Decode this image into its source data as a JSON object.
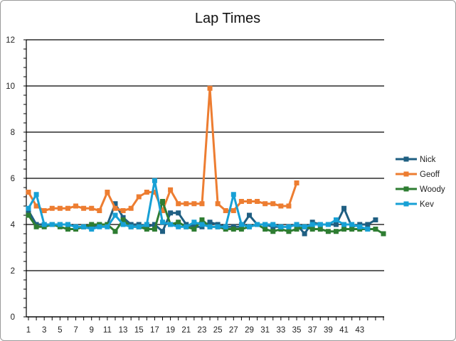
{
  "chart_data": {
    "type": "line",
    "title": "Lap Times",
    "xlabel": "",
    "ylabel": "",
    "ylim": [
      0,
      12
    ],
    "yticks": [
      "0",
      "2",
      "4",
      "6",
      "8",
      "10",
      "12"
    ],
    "xtick_labels": [
      "1",
      "3",
      "5",
      "7",
      "9",
      "11",
      "13",
      "15",
      "17",
      "19",
      "21",
      "23",
      "25",
      "27",
      "29",
      "31",
      "33",
      "35",
      "37",
      "39",
      "41",
      "43"
    ],
    "x_count": 46,
    "grid": "horizontal major lines",
    "legend_position": "right",
    "series": [
      {
        "name": "Nick",
        "color": "#1f5f82",
        "marker": "square",
        "values": [
          4.6,
          4.0,
          4.0,
          4.0,
          4.0,
          4.0,
          3.9,
          3.9,
          3.9,
          4.0,
          4.0,
          4.9,
          4.3,
          4.0,
          4.0,
          3.9,
          4.0,
          3.7,
          4.5,
          4.5,
          4.0,
          3.9,
          3.9,
          4.1,
          4.0,
          3.9,
          3.9,
          3.9,
          4.4,
          4.0,
          4.0,
          3.9,
          3.9,
          3.9,
          4.0,
          3.6,
          4.1,
          4.0,
          4.0,
          4.0,
          4.7,
          3.9,
          4.0,
          4.0,
          4.2,
          null
        ]
      },
      {
        "name": "Geoff",
        "color": "#ed7d31",
        "marker": "square",
        "values": [
          5.4,
          4.8,
          4.6,
          4.7,
          4.7,
          4.7,
          4.8,
          4.7,
          4.7,
          4.6,
          5.4,
          4.7,
          4.6,
          4.7,
          5.2,
          5.4,
          5.4,
          4.6,
          5.5,
          4.9,
          4.9,
          4.9,
          4.9,
          9.9,
          4.9,
          4.6,
          4.6,
          5.0,
          5.0,
          5.0,
          4.9,
          4.9,
          4.8,
          4.8,
          5.8,
          null,
          null,
          null,
          null,
          null,
          null,
          null,
          null,
          null,
          null,
          null
        ]
      },
      {
        "name": "Woody",
        "color": "#2e7d32",
        "marker": "square",
        "values": [
          4.4,
          3.9,
          3.9,
          4.0,
          3.9,
          3.8,
          3.8,
          3.9,
          4.0,
          4.0,
          4.0,
          3.7,
          4.2,
          3.9,
          3.9,
          3.8,
          3.8,
          5.0,
          4.0,
          4.1,
          3.9,
          3.8,
          4.2,
          3.9,
          3.9,
          3.8,
          3.8,
          3.8,
          3.9,
          4.0,
          3.8,
          3.7,
          3.8,
          3.7,
          3.8,
          3.9,
          3.8,
          3.8,
          3.7,
          3.7,
          3.8,
          3.8,
          3.8,
          3.8,
          3.8,
          3.6
        ]
      },
      {
        "name": "Kev",
        "color": "#17a0d5",
        "marker": "square",
        "values": [
          4.7,
          5.3,
          4.0,
          4.0,
          4.0,
          4.0,
          3.9,
          3.9,
          3.8,
          3.9,
          3.9,
          4.4,
          4.0,
          3.9,
          3.9,
          4.0,
          5.9,
          4.1,
          4.0,
          3.9,
          3.9,
          4.1,
          4.0,
          3.9,
          3.9,
          3.9,
          5.3,
          4.0,
          3.9,
          4.0,
          4.0,
          4.0,
          3.9,
          3.9,
          4.0,
          3.9,
          4.0,
          4.0,
          4.0,
          4.2,
          4.0,
          4.0,
          3.9,
          3.8,
          null,
          null
        ]
      }
    ]
  }
}
